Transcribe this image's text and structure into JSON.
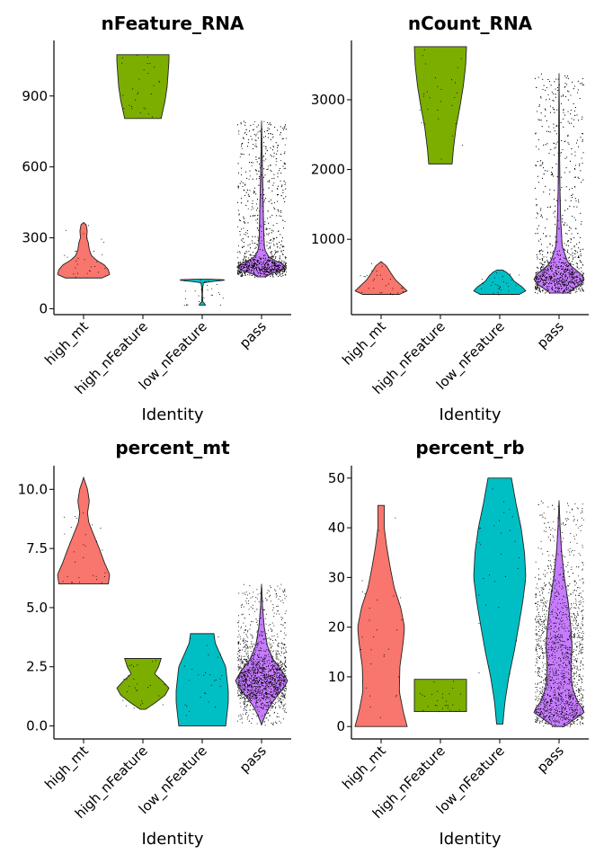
{
  "colors": {
    "high_mt": "#F8766D",
    "high_nFeature": "#7CAE00",
    "low_nFeature": "#00BFC4",
    "pass": "#C77CFF"
  },
  "chart_data": [
    {
      "type": "violin",
      "title": "nFeature_RNA",
      "xlabel": "Identity",
      "categories": [
        "high_mt",
        "high_nFeature",
        "low_nFeature",
        "pass"
      ],
      "ylim": [
        -25,
        1135
      ],
      "yticks": [
        0,
        300,
        600,
        900
      ],
      "ytick_labels": [
        "0",
        "300",
        "600",
        "900"
      ],
      "violins": [
        {
          "category": "high_mt",
          "min": 130,
          "max": 365,
          "profile": [
            [
              130,
              0.7
            ],
            [
              145,
              1.0
            ],
            [
              165,
              0.95
            ],
            [
              185,
              0.8
            ],
            [
              205,
              0.5
            ],
            [
              225,
              0.3
            ],
            [
              250,
              0.22
            ],
            [
              280,
              0.18
            ],
            [
              300,
              0.12
            ],
            [
              330,
              0.14
            ],
            [
              355,
              0.1
            ],
            [
              365,
              0
            ]
          ]
        },
        {
          "category": "high_nFeature",
          "min": 805,
          "max": 1075,
          "profile": [
            [
              805,
              0.7
            ],
            [
              830,
              0.75
            ],
            [
              880,
              0.85
            ],
            [
              940,
              0.93
            ],
            [
              1000,
              0.97
            ],
            [
              1050,
              1.0
            ],
            [
              1075,
              1.0
            ]
          ]
        },
        {
          "category": "low_nFeature",
          "min": 15,
          "max": 125,
          "profile": [
            [
              15,
              0.12
            ],
            [
              20,
              0.1
            ],
            [
              30,
              0.02
            ],
            [
              60,
              0.01
            ],
            [
              90,
              0.02
            ],
            [
              110,
              0.05
            ],
            [
              118,
              0.6
            ],
            [
              122,
              1.0
            ],
            [
              125,
              0.3
            ]
          ]
        },
        {
          "category": "pass",
          "min": 135,
          "max": 795,
          "profile": [
            [
              135,
              0.15
            ],
            [
              150,
              0.4
            ],
            [
              170,
              1.0
            ],
            [
              190,
              0.8
            ],
            [
              215,
              0.3
            ],
            [
              250,
              0.12
            ],
            [
              300,
              0.09
            ],
            [
              400,
              0.07
            ],
            [
              500,
              0.05
            ],
            [
              600,
              0.03
            ],
            [
              700,
              0.015
            ],
            [
              795,
              0
            ]
          ]
        }
      ]
    },
    {
      "type": "violin",
      "title": "nCount_RNA",
      "xlabel": "Identity",
      "categories": [
        "high_mt",
        "high_nFeature",
        "low_nFeature",
        "pass"
      ],
      "ylim": [
        -80,
        3850
      ],
      "yticks": [
        1000,
        2000,
        3000
      ],
      "ytick_labels": [
        "1000",
        "2000",
        "3000"
      ],
      "violins": [
        {
          "category": "high_mt",
          "min": 210,
          "max": 680,
          "profile": [
            [
              210,
              0.7
            ],
            [
              260,
              1.0
            ],
            [
              330,
              0.8
            ],
            [
              420,
              0.55
            ],
            [
              530,
              0.35
            ],
            [
              620,
              0.2
            ],
            [
              680,
              0
            ]
          ]
        },
        {
          "category": "high_nFeature",
          "min": 2080,
          "max": 3760,
          "profile": [
            [
              2080,
              0.45
            ],
            [
              2300,
              0.5
            ],
            [
              2600,
              0.6
            ],
            [
              2900,
              0.75
            ],
            [
              3200,
              0.88
            ],
            [
              3500,
              0.97
            ],
            [
              3760,
              1.0
            ]
          ]
        },
        {
          "category": "low_nFeature",
          "min": 210,
          "max": 560,
          "profile": [
            [
              210,
              0.75
            ],
            [
              260,
              1.0
            ],
            [
              320,
              0.85
            ],
            [
              400,
              0.55
            ],
            [
              480,
              0.4
            ],
            [
              530,
              0.25
            ],
            [
              560,
              0.1
            ]
          ]
        },
        {
          "category": "pass",
          "min": 230,
          "max": 3380,
          "profile": [
            [
              230,
              0.35
            ],
            [
              300,
              0.6
            ],
            [
              400,
              1.0
            ],
            [
              500,
              0.85
            ],
            [
              650,
              0.35
            ],
            [
              900,
              0.12
            ],
            [
              1300,
              0.06
            ],
            [
              1800,
              0.03
            ],
            [
              2400,
              0.015
            ],
            [
              3000,
              0.006
            ],
            [
              3380,
              0
            ]
          ]
        }
      ]
    },
    {
      "type": "violin",
      "title": "percent_mt",
      "xlabel": "Identity",
      "categories": [
        "high_mt",
        "high_nFeature",
        "low_nFeature",
        "pass"
      ],
      "ylim": [
        -0.55,
        11.0
      ],
      "yticks": [
        0,
        2.5,
        5,
        7.5,
        10
      ],
      "ytick_labels": [
        "0.0",
        "2.5",
        "5.0",
        "7.5",
        "10.0"
      ],
      "violins": [
        {
          "category": "high_mt",
          "min": 6.0,
          "max": 10.5,
          "profile": [
            [
              6.0,
              0.95
            ],
            [
              6.4,
              1.0
            ],
            [
              6.9,
              0.8
            ],
            [
              7.5,
              0.6
            ],
            [
              8.1,
              0.38
            ],
            [
              8.6,
              0.2
            ],
            [
              9.0,
              0.15
            ],
            [
              9.5,
              0.22
            ],
            [
              10.0,
              0.15
            ],
            [
              10.5,
              0
            ]
          ]
        },
        {
          "category": "high_nFeature",
          "min": 0.7,
          "max": 2.85,
          "profile": [
            [
              0.7,
              0.1
            ],
            [
              1.0,
              0.5
            ],
            [
              1.3,
              0.85
            ],
            [
              1.6,
              1.0
            ],
            [
              1.9,
              0.75
            ],
            [
              2.2,
              0.45
            ],
            [
              2.5,
              0.6
            ],
            [
              2.85,
              0.7
            ]
          ]
        },
        {
          "category": "low_nFeature",
          "min": 0.0,
          "max": 3.9,
          "profile": [
            [
              0.0,
              0.9
            ],
            [
              0.5,
              0.95
            ],
            [
              1.0,
              1.0
            ],
            [
              1.5,
              1.0
            ],
            [
              2.0,
              0.95
            ],
            [
              2.5,
              0.9
            ],
            [
              3.0,
              0.7
            ],
            [
              3.5,
              0.5
            ],
            [
              3.9,
              0.45
            ]
          ]
        },
        {
          "category": "pass",
          "min": 0.05,
          "max": 6.0,
          "profile": [
            [
              0.05,
              0
            ],
            [
              0.4,
              0.12
            ],
            [
              0.8,
              0.3
            ],
            [
              1.2,
              0.55
            ],
            [
              1.6,
              0.85
            ],
            [
              1.9,
              1.0
            ],
            [
              2.3,
              0.8
            ],
            [
              2.8,
              0.45
            ],
            [
              3.4,
              0.22
            ],
            [
              4.2,
              0.1
            ],
            [
              5.0,
              0.04
            ],
            [
              6.0,
              0
            ]
          ]
        }
      ]
    },
    {
      "type": "violin",
      "title": "percent_rb",
      "xlabel": "Identity",
      "categories": [
        "high_mt",
        "high_nFeature",
        "low_nFeature",
        "pass"
      ],
      "ylim": [
        -2.5,
        52.5
      ],
      "yticks": [
        0,
        10,
        20,
        30,
        40,
        50
      ],
      "ytick_labels": [
        "0",
        "10",
        "20",
        "30",
        "40",
        "50"
      ],
      "violins": [
        {
          "category": "high_mt",
          "min": 0,
          "max": 44.5,
          "profile": [
            [
              0,
              1.0
            ],
            [
              3,
              0.85
            ],
            [
              7,
              0.7
            ],
            [
              12,
              0.72
            ],
            [
              17,
              0.85
            ],
            [
              20,
              0.9
            ],
            [
              24,
              0.75
            ],
            [
              28,
              0.5
            ],
            [
              32,
              0.35
            ],
            [
              36,
              0.22
            ],
            [
              40,
              0.12
            ],
            [
              44.5,
              0.12
            ]
          ]
        },
        {
          "category": "high_nFeature",
          "min": 3,
          "max": 9.5,
          "profile": [
            [
              3,
              1.0
            ],
            [
              4,
              1.0
            ],
            [
              6,
              1.0
            ],
            [
              8,
              1.0
            ],
            [
              9.5,
              1.0
            ]
          ]
        },
        {
          "category": "low_nFeature",
          "min": 0.5,
          "max": 50,
          "profile": [
            [
              0.5,
              0.12
            ],
            [
              5,
              0.2
            ],
            [
              10,
              0.35
            ],
            [
              15,
              0.55
            ],
            [
              20,
              0.72
            ],
            [
              25,
              0.88
            ],
            [
              30,
              1.0
            ],
            [
              35,
              0.95
            ],
            [
              40,
              0.82
            ],
            [
              45,
              0.62
            ],
            [
              50,
              0.45
            ]
          ]
        },
        {
          "category": "pass",
          "min": 0,
          "max": 45.5,
          "profile": [
            [
              0,
              0.2
            ],
            [
              1.5,
              0.6
            ],
            [
              3,
              1.0
            ],
            [
              5,
              0.7
            ],
            [
              8,
              0.5
            ],
            [
              12,
              0.45
            ],
            [
              16,
              0.5
            ],
            [
              20,
              0.45
            ],
            [
              25,
              0.35
            ],
            [
              30,
              0.2
            ],
            [
              35,
              0.1
            ],
            [
              40,
              0.04
            ],
            [
              45.5,
              0
            ]
          ]
        }
      ]
    }
  ]
}
